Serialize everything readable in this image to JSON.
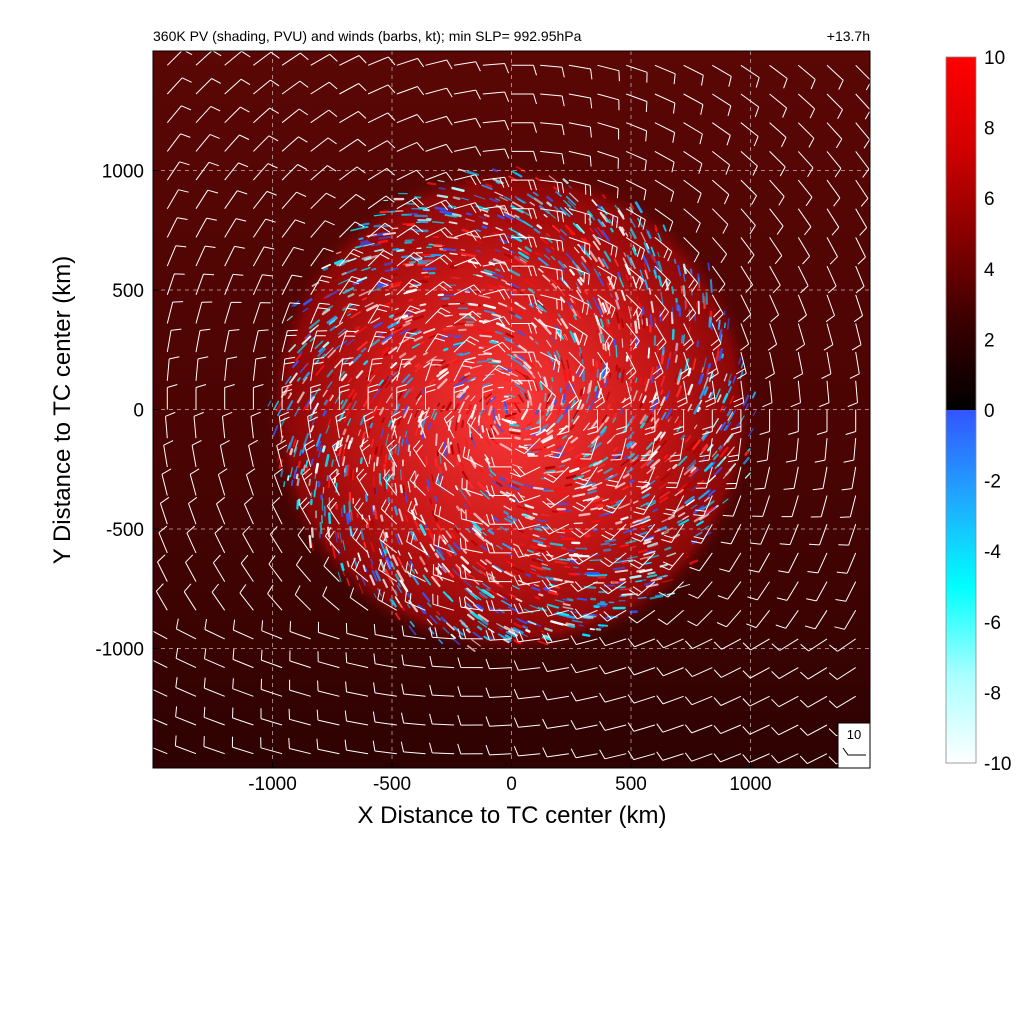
{
  "chart_data": {
    "type": "heatmap",
    "title": "360K PV (shading, PVU) and winds (barbs, kt); min SLP= 992.95hPa",
    "time_label": "+13.7h",
    "xlabel": "X Distance to TC center (km)",
    "ylabel": "Y Distance to TC center (km)",
    "xlim": [
      -1500,
      1500
    ],
    "ylim": [
      -1500,
      1500
    ],
    "x_ticks": [
      -1000,
      -500,
      0,
      500,
      1000
    ],
    "y_ticks": [
      -1000,
      -500,
      0,
      500,
      1000
    ],
    "x_tick_labels": [
      "-1000",
      "-500",
      "0",
      "500",
      "1000"
    ],
    "y_tick_labels": [
      "-1000",
      "-500",
      "0",
      "500",
      "1000"
    ],
    "grid": true,
    "colorbar": {
      "range": [
        -10,
        10
      ],
      "ticks": [
        -10,
        -8,
        -6,
        -4,
        -2,
        0,
        2,
        4,
        6,
        8,
        10
      ],
      "tick_labels": [
        "-10",
        "-8",
        "-6",
        "-4",
        "-2",
        "0",
        "2",
        "4",
        "6",
        "8",
        "10"
      ],
      "positive_colors": [
        "#000000",
        "#3a0000",
        "#8a0000",
        "#d40000",
        "#ff0000"
      ],
      "negative_colors": [
        "#3355ff",
        "#1fa8ff",
        "#00ffff",
        "#a8ffff",
        "#ffffff"
      ]
    },
    "reference_barb": {
      "label": "10",
      "speed_kt": 10
    },
    "features": {
      "vortex_radius_km": 980,
      "background_pv_pvu": 3.5,
      "wind_barb_spacing_km": 120
    }
  }
}
